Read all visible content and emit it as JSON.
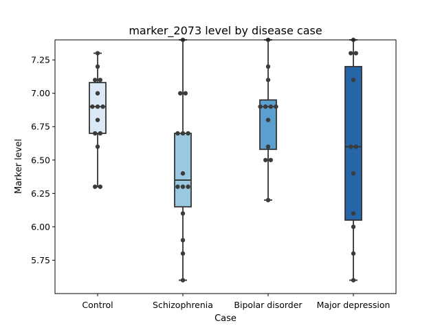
{
  "chart_data": {
    "type": "box",
    "title": "marker_2073 level by disease case",
    "xlabel": "Case",
    "ylabel": "Marker level",
    "categories": [
      "Control",
      "Schizophrenia",
      "Bipolar disorder",
      "Major depression"
    ],
    "ylim": [
      5.5,
      7.4
    ],
    "yticks": [
      "5.75",
      "6.00",
      "6.25",
      "6.50",
      "6.75",
      "7.00",
      "7.25"
    ],
    "grid": false,
    "overlay": "swarm",
    "boxes": [
      {
        "category": "Control",
        "whisker_low": 6.3,
        "q1": 6.7,
        "median": 6.9,
        "q3": 7.08,
        "whisker_high": 7.3,
        "color": "#dbe9f6"
      },
      {
        "category": "Schizophrenia",
        "whisker_low": 5.6,
        "q1": 6.15,
        "median": 6.35,
        "q3": 6.7,
        "whisker_high": 7.4,
        "color": "#9ac8e0"
      },
      {
        "category": "Bipolar disorder",
        "whisker_low": 6.2,
        "q1": 6.58,
        "median": 6.9,
        "q3": 6.95,
        "whisker_high": 7.4,
        "color": "#5a9fcf"
      },
      {
        "category": "Major depression",
        "whisker_low": 5.6,
        "q1": 6.05,
        "median": 6.6,
        "q3": 7.2,
        "whisker_high": 7.4,
        "color": "#2565a8"
      }
    ],
    "points": [
      [
        7.3,
        7.2,
        7.1,
        7.1,
        7.0,
        6.9,
        6.9,
        6.9,
        6.8,
        6.7,
        6.7,
        6.6,
        6.3,
        6.3
      ],
      [
        7.4,
        7.0,
        7.0,
        6.7,
        6.7,
        6.7,
        6.4,
        6.3,
        6.3,
        6.3,
        6.1,
        5.9,
        5.8,
        5.6
      ],
      [
        7.4,
        7.2,
        7.1,
        6.9,
        6.9,
        6.9,
        6.9,
        6.8,
        6.6,
        6.5,
        6.5,
        6.2
      ],
      [
        7.4,
        7.3,
        7.3,
        7.1,
        6.6,
        6.6,
        6.4,
        6.1,
        6.0,
        5.8,
        5.6
      ]
    ],
    "point_color": "#3b3b3b",
    "line_color": "#333333"
  }
}
